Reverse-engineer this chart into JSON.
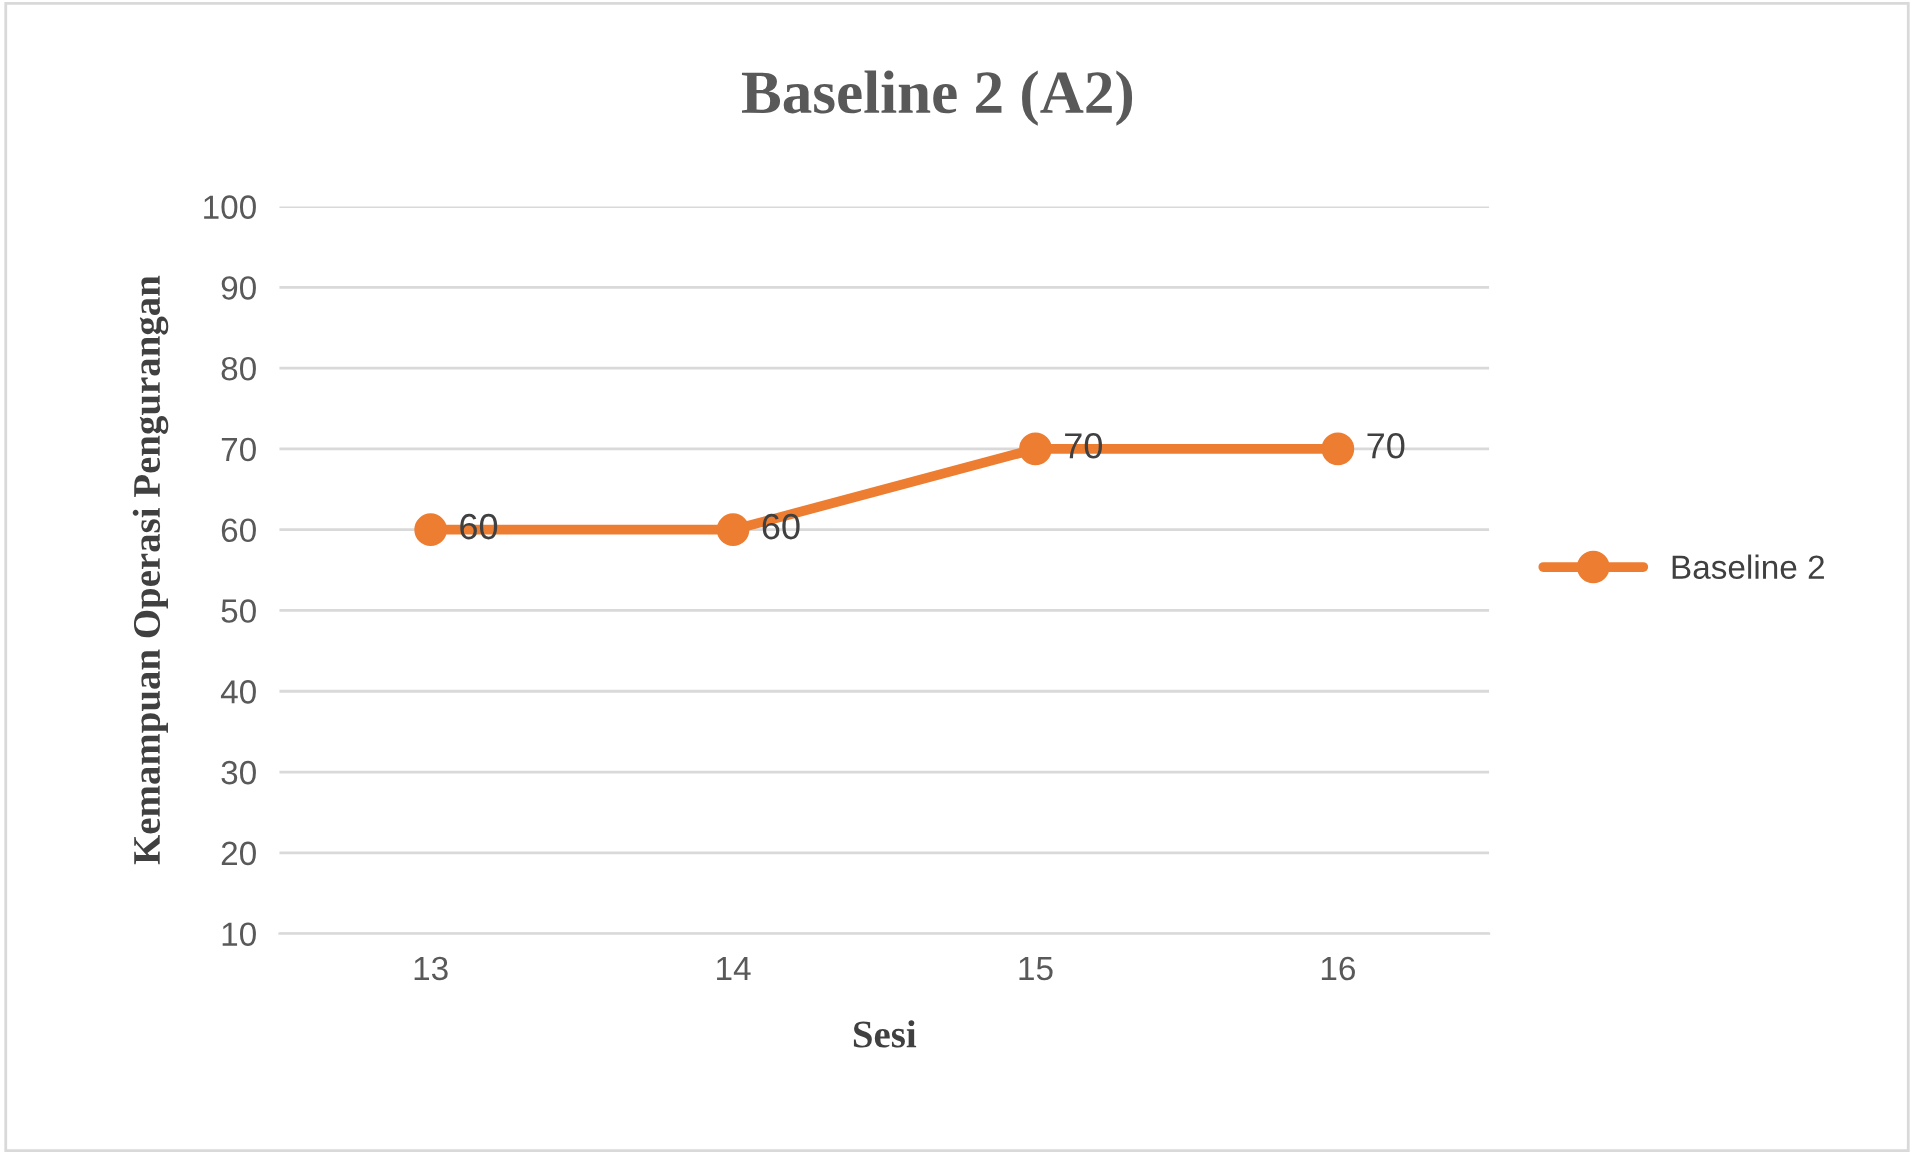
{
  "chart_data": {
    "type": "line",
    "title": "Baseline 2 (A2)",
    "xlabel": "Sesi",
    "ylabel": "Kemampuan Operasi Pengurangan",
    "categories": [
      "13",
      "14",
      "15",
      "16"
    ],
    "series": [
      {
        "name": "Baseline 2",
        "color": "#ed7d31",
        "values": [
          60,
          60,
          70,
          70
        ]
      }
    ],
    "ylim": [
      10,
      100
    ],
    "yticks": [
      10,
      20,
      30,
      40,
      50,
      60,
      70,
      80,
      90,
      100
    ],
    "grid": "y",
    "legend": "right",
    "marker": "circle",
    "line_style": "solid",
    "data_labels": true
  }
}
